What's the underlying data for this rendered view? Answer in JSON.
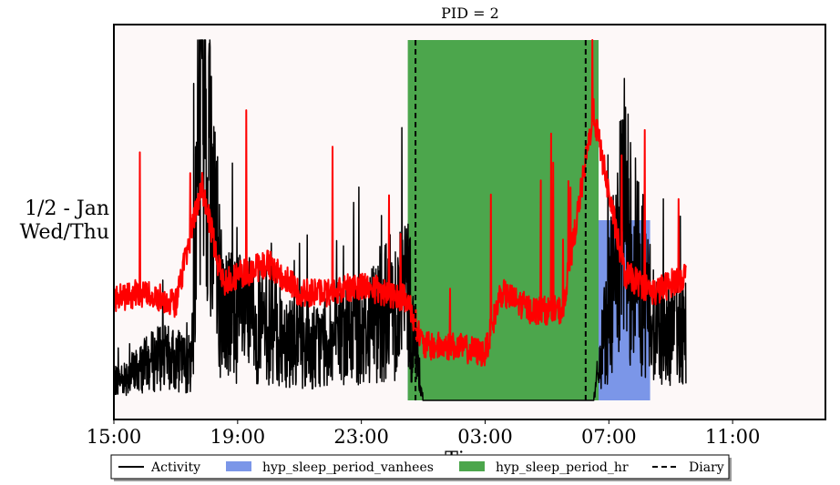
{
  "chart_data": {
    "type": "line",
    "title": "PID = 2",
    "row_label_line1": "1/2 - Jan",
    "row_label_line2": "Wed/Thu",
    "xlabel": "Time",
    "x_ticks": [
      "15:00",
      "19:00",
      "23:00",
      "03:00",
      "07:00",
      "11:00"
    ],
    "xlim": [
      "15:00",
      "14:00"
    ],
    "ylim": [
      0,
      1
    ],
    "grid": false,
    "legend_position": "bottom",
    "background_color": "#fdf8f8",
    "series": [
      {
        "name": "Activity",
        "color": "#000000",
        "style": "line",
        "description_points": [
          [
            "15:00",
            0.05
          ],
          [
            "16:30",
            0.12
          ],
          [
            "17:30",
            0.1
          ],
          [
            "17:50",
            0.95
          ],
          [
            "18:30",
            0.25
          ],
          [
            "20:00",
            0.2
          ],
          [
            "21:30",
            0.15
          ],
          [
            "23:00",
            0.2
          ],
          [
            "00:30",
            0.3
          ],
          [
            "01:00",
            0.0
          ],
          [
            "02:00",
            0.0
          ],
          [
            "03:00",
            0.0
          ],
          [
            "04:00",
            0.0
          ],
          [
            "04:30",
            0.0
          ],
          [
            "06:30",
            0.0
          ],
          [
            "07:30",
            0.5
          ],
          [
            "08:30",
            0.2
          ],
          [
            "09:30",
            0.2
          ]
        ]
      },
      {
        "name": "",
        "color": "#ff0000",
        "style": "line",
        "description_points": [
          [
            "15:00",
            0.28
          ],
          [
            "16:00",
            0.3
          ],
          [
            "17:00",
            0.27
          ],
          [
            "17:50",
            0.6
          ],
          [
            "18:30",
            0.33
          ],
          [
            "20:00",
            0.38
          ],
          [
            "21:00",
            0.3
          ],
          [
            "22:00",
            0.3
          ],
          [
            "23:00",
            0.32
          ],
          [
            "00:30",
            0.28
          ],
          [
            "01:00",
            0.15
          ],
          [
            "02:00",
            0.15
          ],
          [
            "03:00",
            0.13
          ],
          [
            "03:30",
            0.3
          ],
          [
            "04:30",
            0.25
          ],
          [
            "05:30",
            0.25
          ],
          [
            "06:30",
            0.8
          ],
          [
            "07:30",
            0.35
          ],
          [
            "08:30",
            0.3
          ],
          [
            "09:30",
            0.35
          ]
        ]
      },
      {
        "name": "hyp_sleep_period_vanhees",
        "color": "#7b96e8",
        "style": "span",
        "start": "00:30",
        "end": "08:20",
        "height": 0.5
      },
      {
        "name": "hyp_sleep_period_hr",
        "color": "#4ca64c",
        "style": "span",
        "start": "00:30",
        "end": "06:40",
        "height": 1.0
      },
      {
        "name": "Diary",
        "color": "#000000",
        "style": "dashed-vlines",
        "x": [
          "00:45",
          "06:15"
        ]
      }
    ]
  }
}
